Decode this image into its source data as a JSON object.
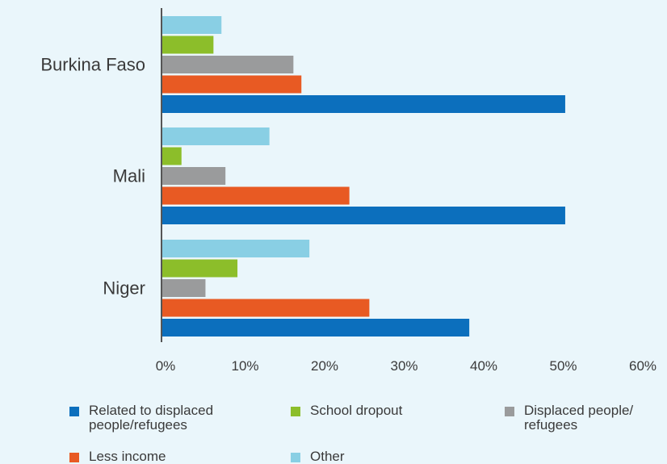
{
  "chart_data": {
    "type": "bar",
    "orientation": "horizontal",
    "categories": [
      "Burkina Faso",
      "Mali",
      "Niger"
    ],
    "series": [
      {
        "name": "Other",
        "color": "#89cfe4",
        "values": [
          7.5,
          13.5,
          18.5
        ]
      },
      {
        "name": "School dropout",
        "color": "#8cbe2a",
        "values": [
          6.5,
          2.5,
          9.5
        ]
      },
      {
        "name": "Displaced people/\nrefugees",
        "color": "#9a9b9c",
        "values": [
          16.5,
          8.0,
          5.5
        ]
      },
      {
        "name": "Less income",
        "color": "#e85a23",
        "values": [
          17.5,
          23.5,
          26.0
        ]
      },
      {
        "name": "Related to displaced\npeople/refugees",
        "color": "#0c6fbd",
        "values": [
          50.5,
          50.5,
          38.5
        ]
      }
    ],
    "xticks": [
      "0%",
      "10%",
      "20%",
      "30%",
      "40%",
      "50%",
      "60%"
    ],
    "xlim": [
      0,
      60
    ],
    "legend_order": [
      4,
      1,
      2,
      3,
      0
    ],
    "title": "",
    "xlabel": "",
    "ylabel": "",
    "grid": false,
    "legend_position": "bottom"
  }
}
